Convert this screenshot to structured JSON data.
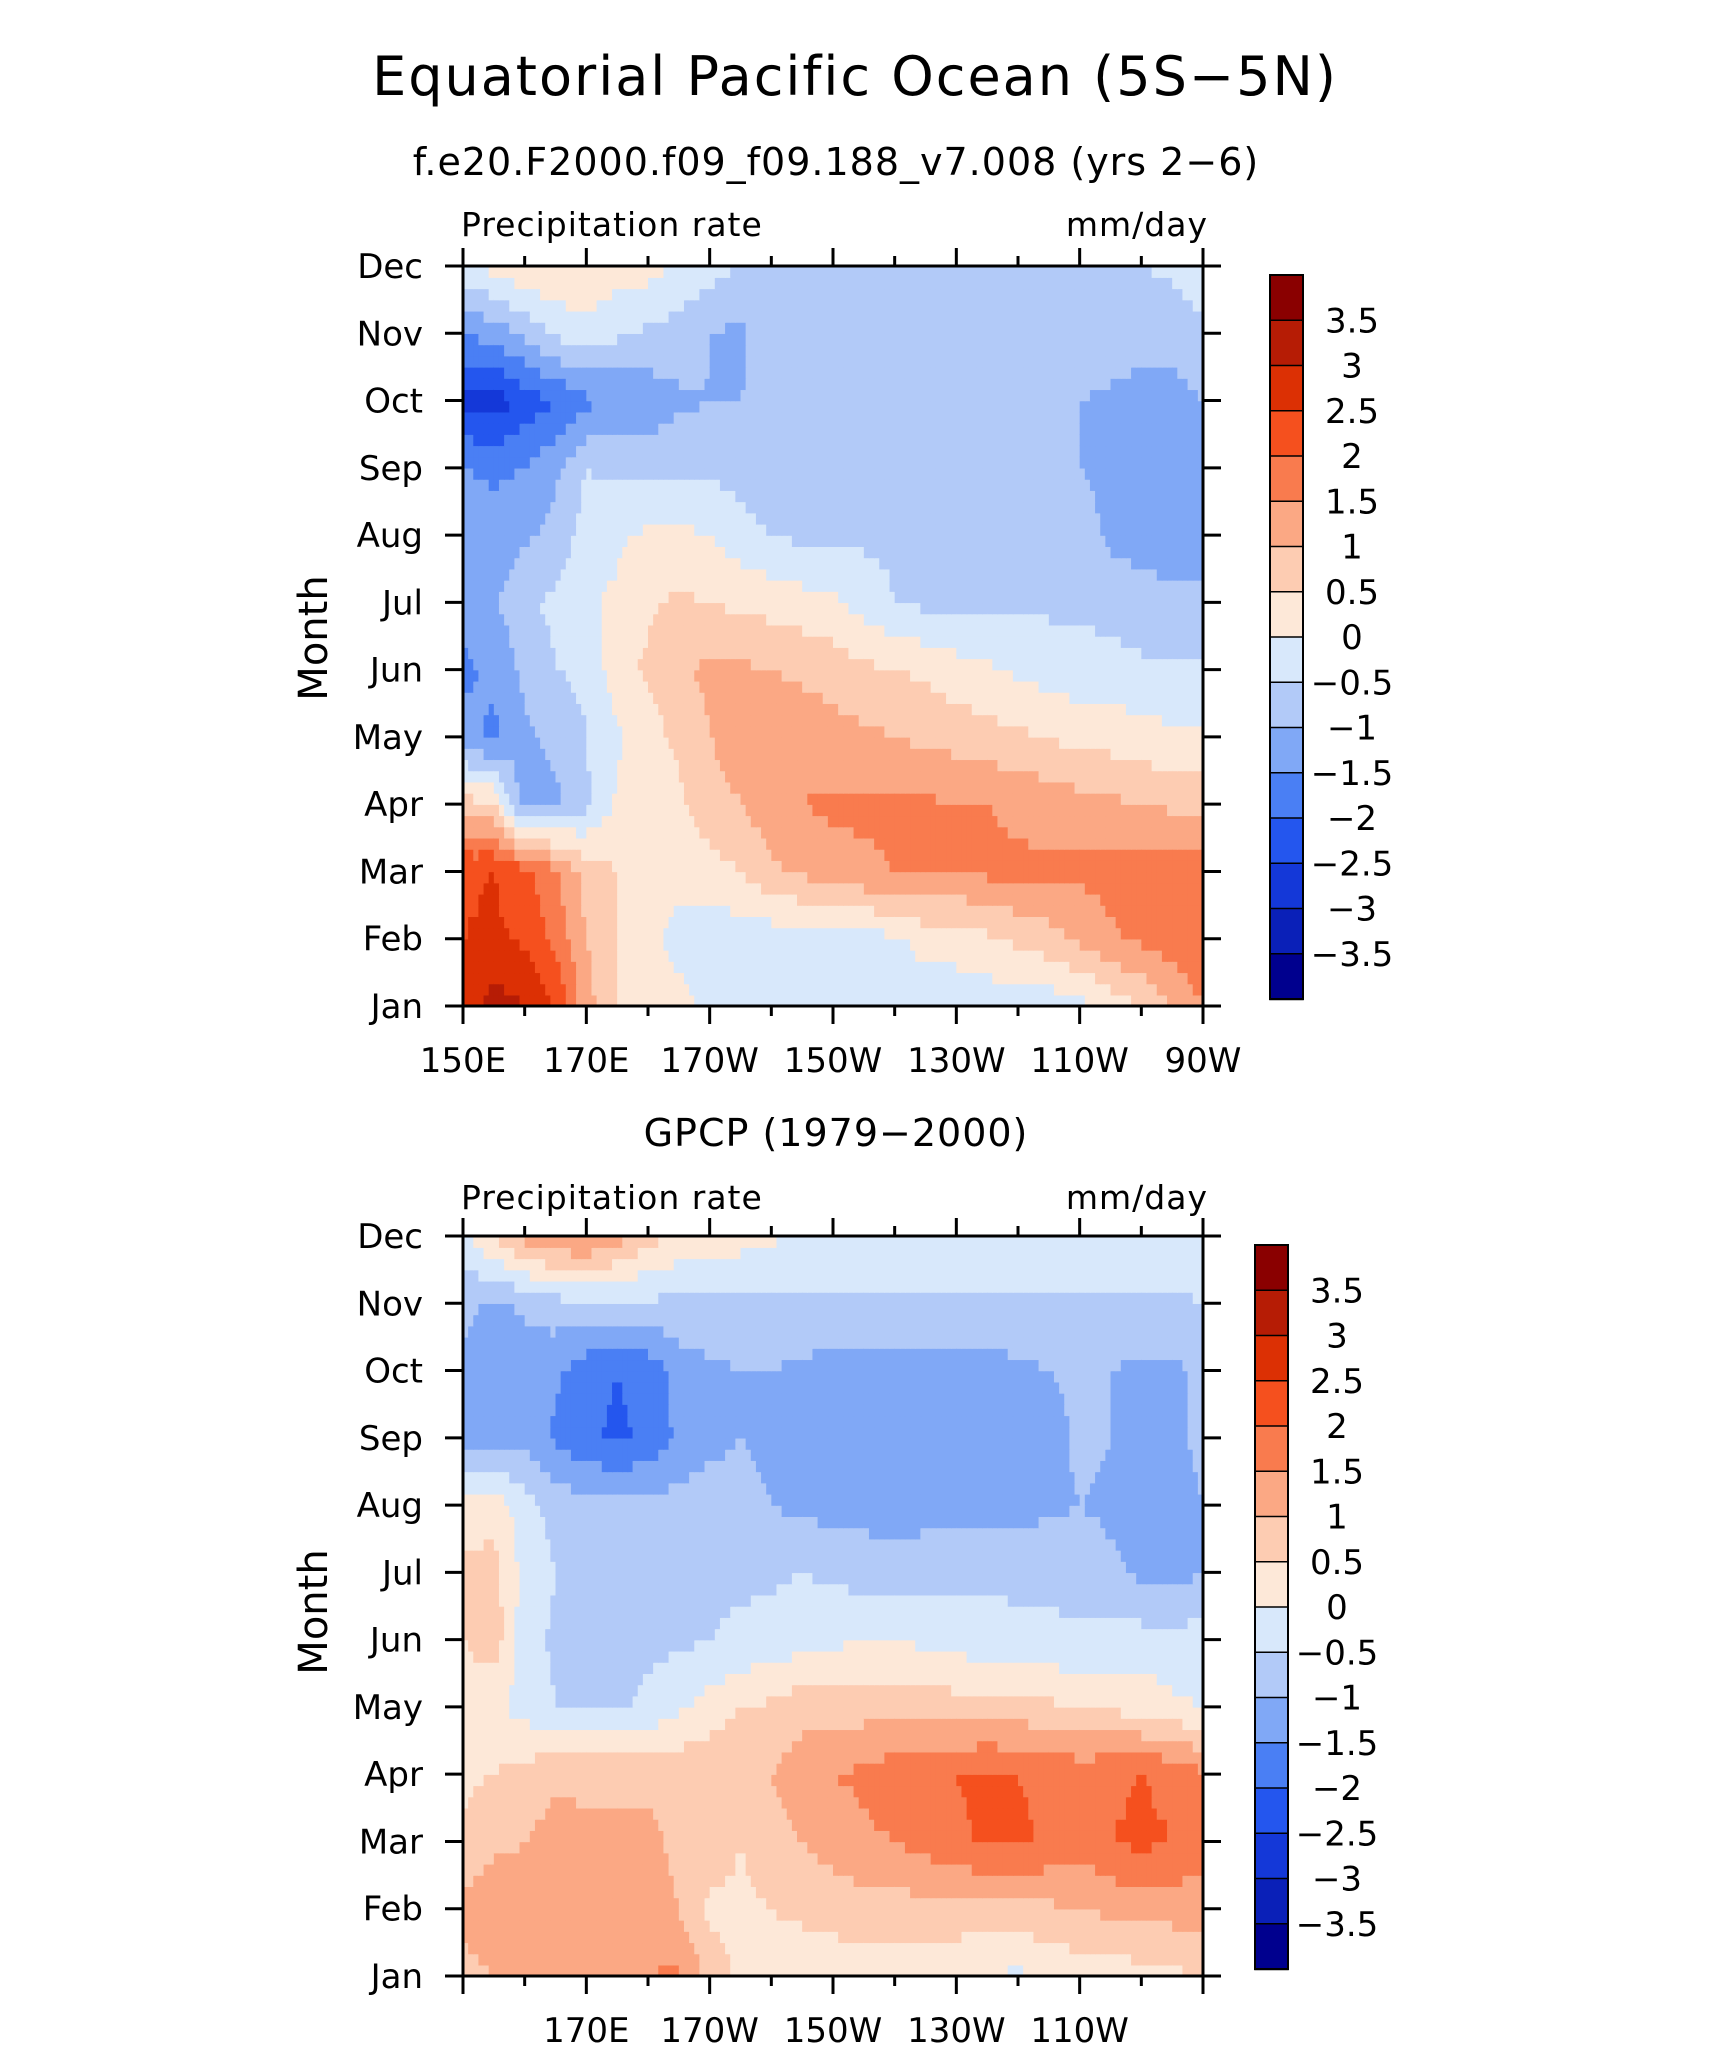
{
  "title": "Equatorial Pacific Ocean (5S−5N)",
  "colorbar": {
    "levels": [
      -3.5,
      -3,
      -2.5,
      -2,
      -1.5,
      -1,
      -0.5,
      0,
      0.5,
      1,
      1.5,
      2,
      2.5,
      3,
      3.5
    ],
    "labels": [
      "3.5",
      "3",
      "2.5",
      "2",
      "1.5",
      "1",
      "0.5",
      "0",
      "−0.5",
      "−1",
      "−1.5",
      "−2",
      "−2.5",
      "−3",
      "−3.5"
    ],
    "colors": [
      "#00008e",
      "#0a20b8",
      "#1438d8",
      "#2456ee",
      "#4a7ff4",
      "#80a8f6",
      "#b2caf8",
      "#d8e8fb",
      "#fde8d8",
      "#fdccb2",
      "#fba884",
      "#f97b4e",
      "#f5501e",
      "#dc3004",
      "#b61c05",
      "#8a0000"
    ]
  },
  "chart_data": [
    {
      "type": "heatmap",
      "subtitle": "f.e20.F2000.f09_f09.188_v7.008 (yrs 2−6)",
      "left_label": "Precipitation rate",
      "right_label": "mm/day",
      "ylabel": "Month",
      "xlim": [
        150,
        270
      ],
      "x_tick_labels": [
        "150E",
        "170E",
        "170W",
        "150W",
        "130W",
        "110W",
        "90W"
      ],
      "y_tick_labels": [
        "Jan",
        "Feb",
        "Mar",
        "Apr",
        "May",
        "Jun",
        "Jul",
        "Aug",
        "Sep",
        "Oct",
        "Nov",
        "Dec"
      ],
      "x": [
        150,
        155,
        160,
        165,
        170,
        175,
        180,
        185,
        190,
        195,
        200,
        205,
        210,
        215,
        220,
        225,
        230,
        235,
        240,
        245,
        250,
        255,
        260,
        265,
        270
      ],
      "y": [
        "Jan",
        "Feb",
        "Mar",
        "Apr",
        "May",
        "Jun",
        "Jul",
        "Aug",
        "Sep",
        "Oct",
        "Nov",
        "Dec"
      ],
      "z": [
        [
          2.6,
          3.2,
          3.0,
          2.5,
          1.2,
          0.5,
          0.3,
          0.2,
          -0.2,
          -0.2,
          -0.3,
          -0.3,
          -0.3,
          -0.3,
          -0.3,
          -0.3,
          -0.3,
          -0.3,
          -0.3,
          -0.3,
          -0.2,
          0.2,
          0.5,
          1.0,
          1.5
        ],
        [
          2.5,
          2.6,
          2.4,
          1.8,
          1.0,
          0.5,
          0.2,
          -0.2,
          -0.3,
          -0.3,
          -0.3,
          -0.3,
          -0.3,
          -0.2,
          -0.1,
          0.2,
          0.2,
          0.4,
          0.6,
          0.8,
          1.1,
          1.4,
          1.6,
          1.8,
          1.9
        ],
        [
          2.4,
          2.5,
          2.2,
          1.6,
          0.8,
          0.5,
          0.3,
          0.2,
          0.3,
          0.5,
          0.9,
          1.1,
          1.3,
          1.4,
          1.5,
          1.5,
          1.5,
          1.6,
          1.6,
          1.6,
          1.6,
          1.7,
          1.8,
          1.9,
          1.8
        ],
        [
          0.8,
          0.5,
          -1.3,
          -1.1,
          -0.6,
          0.1,
          0.3,
          0.4,
          0.8,
          1.0,
          1.3,
          1.5,
          1.6,
          1.6,
          1.6,
          1.6,
          1.5,
          1.5,
          1.4,
          1.3,
          1.2,
          1.1,
          1.0,
          0.9,
          0.8
        ],
        [
          -1.3,
          -1.6,
          -1.1,
          -0.9,
          -0.5,
          -0.1,
          0.3,
          0.6,
          1.0,
          1.2,
          1.3,
          1.3,
          1.2,
          1.1,
          1.0,
          0.9,
          0.8,
          0.7,
          0.6,
          0.5,
          0.3,
          0.3,
          0.2,
          0.1,
          0.1
        ],
        [
          -1.6,
          -1.4,
          -0.9,
          -0.5,
          -0.4,
          0.3,
          0.6,
          0.9,
          1.1,
          1.1,
          1.0,
          0.9,
          0.8,
          0.6,
          0.5,
          0.4,
          0.2,
          0.1,
          -0.1,
          -0.2,
          -0.3,
          -0.3,
          -0.4,
          -0.4,
          -0.4
        ],
        [
          -1.4,
          -1.1,
          -0.6,
          -0.4,
          -0.1,
          0.1,
          0.4,
          0.6,
          0.5,
          0.4,
          0.3,
          0.2,
          0.1,
          -0.2,
          -0.5,
          -0.6,
          -0.6,
          -0.6,
          -0.6,
          -0.6,
          -0.6,
          -0.7,
          -0.8,
          -0.9,
          -1.0
        ],
        [
          -1.0,
          -1.3,
          -1.1,
          -0.8,
          -0.3,
          -0.1,
          0.1,
          0.1,
          0.0,
          -0.3,
          -0.5,
          -0.6,
          -0.6,
          -0.6,
          -0.6,
          -0.6,
          -0.7,
          -0.7,
          -0.7,
          -0.8,
          -0.8,
          -1.1,
          -1.2,
          -1.2,
          -1.0
        ],
        [
          -1.5,
          -1.6,
          -1.5,
          -1.1,
          -0.5,
          -0.6,
          -0.7,
          -0.6,
          -0.6,
          -0.7,
          -0.8,
          -0.8,
          -0.8,
          -0.7,
          -0.6,
          -0.6,
          -0.6,
          -0.6,
          -0.7,
          -0.8,
          -1.0,
          -1.1,
          -1.2,
          -1.2,
          -1.0
        ],
        [
          -2.6,
          -2.8,
          -2.3,
          -2.0,
          -1.6,
          -1.5,
          -1.3,
          -1.1,
          -1.0,
          -1.0,
          -0.9,
          -1.0,
          -1.0,
          -1.0,
          -0.8,
          -0.6,
          -0.6,
          -0.6,
          -0.7,
          -0.8,
          -1.0,
          -1.1,
          -1.2,
          -1.2,
          -1.0
        ],
        [
          -1.5,
          -1.3,
          -0.9,
          -0.4,
          -0.2,
          -0.4,
          -0.6,
          -0.7,
          -1.0,
          -1.1,
          -0.7,
          -0.6,
          -0.6,
          -0.6,
          -0.6,
          -0.6,
          -0.6,
          -0.6,
          -0.6,
          -0.6,
          -0.6,
          -0.7,
          -0.8,
          -0.8,
          -0.6
        ],
        [
          -0.2,
          0.2,
          0.4,
          0.5,
          0.4,
          0.2,
          0.2,
          -0.1,
          -0.3,
          -0.5,
          -0.6,
          -0.6,
          -0.6,
          -0.6,
          -0.6,
          -0.6,
          -0.6,
          -0.6,
          -0.6,
          -0.6,
          -0.5,
          -0.5,
          -0.5,
          -0.4,
          -0.2
        ]
      ]
    },
    {
      "type": "heatmap",
      "subtitle": "GPCP (1979−2000)",
      "left_label": "Precipitation rate",
      "right_label": "mm/day",
      "ylabel": "Month",
      "xlim": [
        150,
        270
      ],
      "x_tick_labels": [
        "170E",
        "170W",
        "150W",
        "130W",
        "110W"
      ],
      "y_tick_labels": [
        "Jan",
        "Feb",
        "Mar",
        "Apr",
        "May",
        "Jun",
        "Jul",
        "Aug",
        "Sep",
        "Oct",
        "Nov",
        "Dec"
      ],
      "x": [
        150,
        155,
        160,
        165,
        170,
        175,
        180,
        185,
        190,
        195,
        200,
        205,
        210,
        215,
        220,
        225,
        230,
        235,
        240,
        245,
        250,
        255,
        260,
        265,
        270
      ],
      "y": [
        "Jan",
        "Feb",
        "Mar",
        "Apr",
        "May",
        "Jun",
        "Jul",
        "Aug",
        "Sep",
        "Oct",
        "Nov",
        "Dec"
      ],
      "z": [
        [
          0.8,
          1.0,
          1.2,
          1.1,
          1.3,
          1.4,
          1.5,
          1.6,
          0.8,
          0.4,
          0.3,
          0.2,
          0.2,
          0.2,
          0.2,
          0.1,
          0.1,
          0.0,
          -0.1,
          0.1,
          0.2,
          0.2,
          0.3,
          0.4,
          0.5
        ],
        [
          1.2,
          1.3,
          1.1,
          1.1,
          1.2,
          1.2,
          1.2,
          1.0,
          0.4,
          0.4,
          0.5,
          0.6,
          0.7,
          0.8,
          0.8,
          0.8,
          0.8,
          0.8,
          0.8,
          0.9,
          1.0,
          1.1,
          1.2,
          1.2,
          1.2
        ],
        [
          0.6,
          0.9,
          1.0,
          1.2,
          1.1,
          1.1,
          1.1,
          0.9,
          0.8,
          0.5,
          0.8,
          1.0,
          1.2,
          1.4,
          1.5,
          1.7,
          1.9,
          2.1,
          2.1,
          1.9,
          1.7,
          2.0,
          2.1,
          2.0,
          1.8
        ],
        [
          0.4,
          0.5,
          0.7,
          0.9,
          0.9,
          0.9,
          0.9,
          0.9,
          0.9,
          0.9,
          1.0,
          1.3,
          1.5,
          1.6,
          1.8,
          1.9,
          2.0,
          2.1,
          2.0,
          1.9,
          1.8,
          1.9,
          2.0,
          1.9,
          1.6
        ],
        [
          0.2,
          0.1,
          -0.2,
          -0.5,
          -0.6,
          -0.6,
          -0.4,
          -0.1,
          0.2,
          0.5,
          0.6,
          0.8,
          0.8,
          0.8,
          0.8,
          0.8,
          0.7,
          0.7,
          0.7,
          0.6,
          0.5,
          0.4,
          0.3,
          0.1,
          0.0
        ],
        [
          0.5,
          0.8,
          -0.3,
          -0.6,
          -0.6,
          -0.6,
          -0.6,
          -0.6,
          -0.5,
          -0.4,
          -0.3,
          -0.2,
          -0.1,
          0.0,
          0.0,
          -0.1,
          -0.2,
          -0.3,
          -0.4,
          -0.4,
          -0.4,
          -0.3,
          -0.3,
          -0.3,
          -0.3
        ],
        [
          0.6,
          0.7,
          -0.2,
          -0.5,
          -0.6,
          -0.6,
          -0.6,
          -0.6,
          -0.6,
          -0.6,
          -0.6,
          -0.5,
          -0.6,
          -0.7,
          -0.8,
          -0.7,
          -0.6,
          -0.6,
          -0.6,
          -0.6,
          -0.7,
          -0.9,
          -1.1,
          -1.2,
          -1.0
        ],
        [
          0.2,
          0.3,
          -0.3,
          -0.7,
          -0.8,
          -0.8,
          -0.8,
          -0.8,
          -0.8,
          -0.9,
          -1.0,
          -1.1,
          -1.2,
          -1.2,
          -1.2,
          -1.2,
          -1.2,
          -1.2,
          -1.2,
          -1.1,
          -1.0,
          -1.1,
          -1.2,
          -1.2,
          -1.0
        ],
        [
          -1.2,
          -1.3,
          -1.1,
          -1.6,
          -1.9,
          -2.1,
          -1.9,
          -1.4,
          -1.1,
          -1.0,
          -1.1,
          -1.2,
          -1.3,
          -1.3,
          -1.3,
          -1.3,
          -1.3,
          -1.3,
          -1.3,
          -1.2,
          -0.9,
          -1.0,
          -1.1,
          -1.1,
          -0.9
        ],
        [
          -1.1,
          -1.2,
          -1.3,
          -1.4,
          -1.8,
          -2.0,
          -1.8,
          -1.3,
          -1.1,
          -1.0,
          -1.0,
          -1.1,
          -1.2,
          -1.2,
          -1.2,
          -1.2,
          -1.2,
          -1.2,
          -1.1,
          -1.0,
          -0.9,
          -1.0,
          -1.1,
          -1.1,
          -0.9
        ],
        [
          -0.9,
          -1.1,
          -0.9,
          -0.7,
          -0.6,
          -0.6,
          -0.6,
          -0.6,
          -0.6,
          -0.6,
          -0.6,
          -0.6,
          -0.6,
          -0.6,
          -0.6,
          -0.6,
          -0.6,
          -0.6,
          -0.6,
          -0.6,
          -0.6,
          -0.6,
          -0.6,
          -0.6,
          -0.5
        ],
        [
          -0.1,
          0.5,
          1.2,
          1.5,
          1.6,
          1.2,
          0.7,
          0.4,
          0.3,
          0.2,
          0.1,
          -0.1,
          -0.2,
          -0.2,
          -0.2,
          -0.2,
          -0.2,
          -0.2,
          -0.2,
          -0.2,
          -0.2,
          -0.2,
          -0.2,
          -0.2,
          -0.1
        ]
      ]
    }
  ]
}
